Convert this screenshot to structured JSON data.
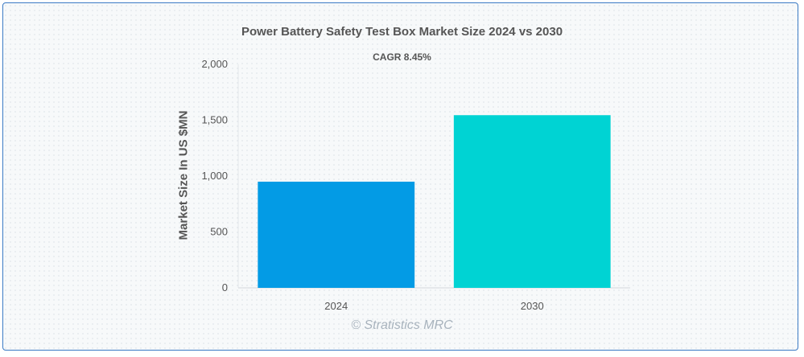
{
  "chart_data": {
    "type": "bar",
    "title": "Power Battery Safety Test Box Market Size 2024 vs 2030",
    "subtitle": "CAGR 8.45%",
    "xlabel": "",
    "ylabel": "Market Size In US $MN",
    "categories": [
      "2024",
      "2030"
    ],
    "values": [
      950,
      1545
    ],
    "colors": [
      "#039be5",
      "#00d3d3"
    ],
    "ylim": [
      0,
      2000
    ],
    "yticks": [
      0,
      500,
      1000,
      1500,
      2000
    ],
    "ytick_labels": [
      "0",
      "500",
      "1,000",
      "1,500",
      "2,000"
    ],
    "grid": false,
    "legend": "none"
  },
  "watermark": "© Stratistics MRC"
}
